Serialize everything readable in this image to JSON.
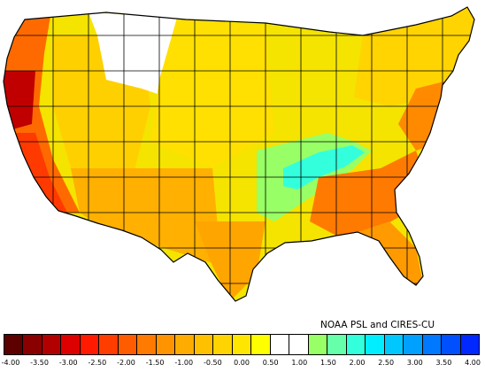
{
  "credit": "NOAA PSL and CIRES-CU",
  "legend": {
    "colors": [
      "#5c0000",
      "#8a0000",
      "#b20000",
      "#dc0000",
      "#ff1a00",
      "#ff3d00",
      "#ff5c00",
      "#ff7a00",
      "#ff9400",
      "#ffac00",
      "#ffc000",
      "#ffd400",
      "#ffe600",
      "#ffff00",
      "#ffffff",
      "#ffffff",
      "#99ff66",
      "#66ffaa",
      "#33ffdd",
      "#00eeff",
      "#00c8ff",
      "#00a0ff",
      "#0078ff",
      "#0050ff",
      "#0028ff"
    ],
    "tick_labels": [
      "-4.00",
      "-3.50",
      "-3.00",
      "-2.50",
      "-2.00",
      "-1.50",
      "-1.00",
      "-0.50",
      "0.00",
      "0.50",
      "1.00",
      "1.50",
      "2.00",
      "2.50",
      "3.00",
      "3.50",
      "4.00"
    ]
  },
  "map": {
    "land_color": "#f4e400",
    "border_color": "#000000",
    "regions": [
      {
        "name": "pacific-coast-north",
        "color": "#ff6a00"
      },
      {
        "name": "northern-california-coast",
        "color": "#c00000"
      },
      {
        "name": "southern-california",
        "color": "#ff3a00"
      },
      {
        "name": "great-basin",
        "color": "#ffd000"
      },
      {
        "name": "southwest",
        "color": "#ffb000"
      },
      {
        "name": "northern-plains",
        "color": "#ffffff"
      },
      {
        "name": "central-plains",
        "color": "#ffe000"
      },
      {
        "name": "tennessee-valley",
        "color": "#33ffdd"
      },
      {
        "name": "ohio-valley",
        "color": "#99ff66"
      },
      {
        "name": "southeast-coast",
        "color": "#ff7a00"
      },
      {
        "name": "florida",
        "color": "#ff9a00"
      },
      {
        "name": "northeast",
        "color": "#ffd400"
      },
      {
        "name": "mid-atlantic",
        "color": "#ff8a00"
      }
    ]
  }
}
